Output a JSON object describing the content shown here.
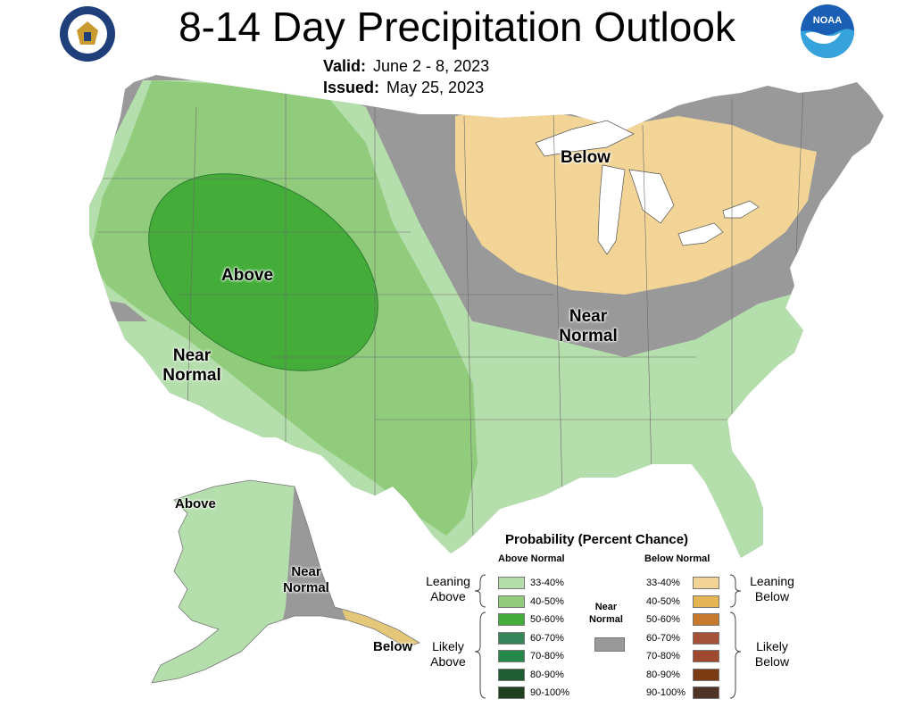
{
  "header": {
    "title": "8-14 Day Precipitation Outlook",
    "valid_label": "Valid:",
    "valid_value": "June 2 - 8, 2023",
    "issued_label": "Issued:",
    "issued_value": "May 25, 2023",
    "left_logo": "doc-seal-icon",
    "right_logo": "noaa-logo-icon"
  },
  "map_labels": {
    "below_great_lakes": "Below",
    "above_west": "Above",
    "near_normal_southwest": [
      "Near",
      "Normal"
    ],
    "near_normal_ohio_valley": [
      "Near",
      "Normal"
    ],
    "alaska_above": "Above",
    "alaska_near_normal": [
      "Near",
      "Normal"
    ],
    "alaska_below": "Below"
  },
  "legend": {
    "title": "Probability (Percent Chance)",
    "above_header": "Above Normal",
    "below_header": "Below Normal",
    "near_label": [
      "Near",
      "Normal"
    ],
    "near_color": "#999999",
    "group_leaning_above": [
      "Leaning",
      "Above"
    ],
    "group_likely_above": [
      "Likely",
      "Above"
    ],
    "group_leaning_below": [
      "Leaning",
      "Below"
    ],
    "group_likely_below": [
      "Likely",
      "Below"
    ],
    "above_rows": [
      {
        "label": "33-40%",
        "color": "#b4deab"
      },
      {
        "label": "40-50%",
        "color": "#91cc7d"
      },
      {
        "label": "50-60%",
        "color": "#44ad3a"
      },
      {
        "label": "60-70%",
        "color": "#34865a"
      },
      {
        "label": "70-80%",
        "color": "#26874a"
      },
      {
        "label": "80-90%",
        "color": "#1f5e33"
      },
      {
        "label": "90-100%",
        "color": "#1d4020"
      }
    ],
    "below_rows": [
      {
        "label": "33-40%",
        "color": "#f2d596"
      },
      {
        "label": "40-50%",
        "color": "#e5b554"
      },
      {
        "label": "50-60%",
        "color": "#c7792d"
      },
      {
        "label": "60-70%",
        "color": "#a65238"
      },
      {
        "label": "70-80%",
        "color": "#a0482e"
      },
      {
        "label": "80-90%",
        "color": "#7a3a12"
      },
      {
        "label": "90-100%",
        "color": "#4e3326"
      }
    ]
  }
}
